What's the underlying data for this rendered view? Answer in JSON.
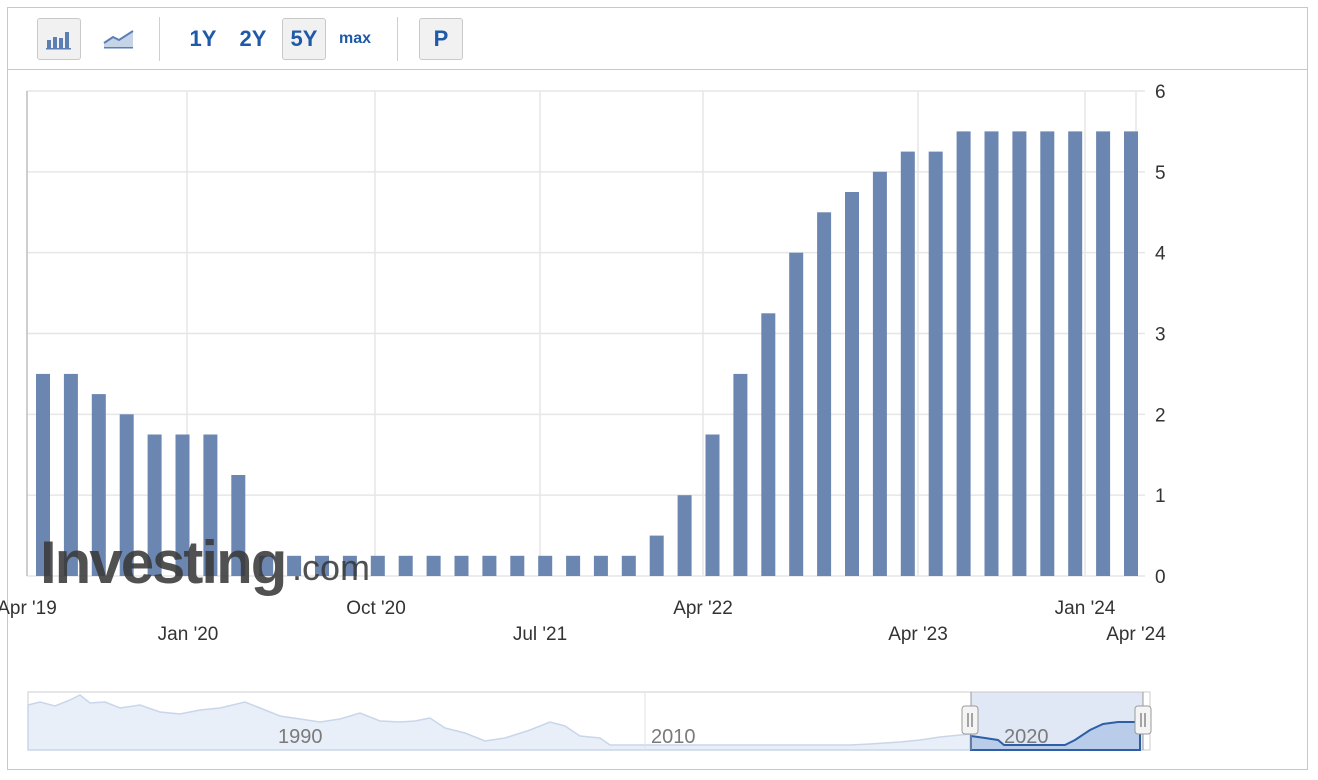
{
  "toolbar": {
    "bar_chart_icon": "bar-chart-icon",
    "line_chart_icon": "line-chart-icon",
    "ranges": [
      "1Y",
      "2Y",
      "5Y",
      "max"
    ],
    "active_range": "5Y",
    "p_label": "P"
  },
  "watermark": {
    "main": "Investing",
    "dot": ".com"
  },
  "colors": {
    "bar": "#6b86b0",
    "grid": "#e6e6e6",
    "link": "#1f5aa8",
    "navigator_fill": "#dfe8f4",
    "navigator_line": "#2e5fa6"
  },
  "chart_data": {
    "type": "bar",
    "title": "",
    "xlabel": "",
    "ylabel": "",
    "ylim": [
      0,
      6
    ],
    "yticks": [
      0,
      1,
      2,
      3,
      4,
      5,
      6
    ],
    "y_axis_side": "right",
    "grid": true,
    "x_tick_labels": [
      "Apr '19",
      "Jan '20",
      "Oct '20",
      "Jul '21",
      "Apr '22",
      "Apr '23",
      "Jan '24",
      "Apr '24"
    ],
    "categories": [
      "2019-06",
      "2019-07",
      "2019-09",
      "2019-10",
      "2019-12",
      "2020-01",
      "2020-03",
      "2020-03b",
      "2020-06",
      "2020-07",
      "2020-09",
      "2020-11",
      "2020-12",
      "2021-01",
      "2021-03",
      "2021-04",
      "2021-06",
      "2021-07",
      "2021-09",
      "2021-11",
      "2021-12",
      "2022-01",
      "2022-03",
      "2022-05",
      "2022-06",
      "2022-07",
      "2022-09",
      "2022-11",
      "2022-12",
      "2023-02",
      "2023-03",
      "2023-05",
      "2023-06",
      "2023-07",
      "2023-09",
      "2023-11",
      "2023-12",
      "2024-01",
      "2024-03",
      "2024-05"
    ],
    "values": [
      2.5,
      2.5,
      2.25,
      2.0,
      1.75,
      1.75,
      1.75,
      1.25,
      0.25,
      0.25,
      0.25,
      0.25,
      0.25,
      0.25,
      0.25,
      0.25,
      0.25,
      0.25,
      0.25,
      0.25,
      0.25,
      0.25,
      0.5,
      1.0,
      1.75,
      2.5,
      3.25,
      4.0,
      4.5,
      4.75,
      5.0,
      5.25,
      5.25,
      5.5,
      5.5,
      5.5,
      5.5,
      5.5,
      5.5,
      5.5
    ]
  },
  "navigator": {
    "labels": [
      "1990",
      "2010",
      "2020"
    ]
  }
}
